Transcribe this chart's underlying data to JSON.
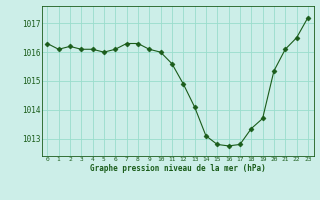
{
  "x": [
    0,
    1,
    2,
    3,
    4,
    5,
    6,
    7,
    8,
    9,
    10,
    11,
    12,
    13,
    14,
    15,
    16,
    17,
    18,
    19,
    20,
    21,
    22,
    23
  ],
  "y": [
    1016.3,
    1016.1,
    1016.2,
    1016.1,
    1016.1,
    1016.0,
    1016.1,
    1016.3,
    1016.3,
    1016.1,
    1016.0,
    1015.6,
    1014.9,
    1014.1,
    1013.1,
    1012.8,
    1012.75,
    1012.8,
    1013.35,
    1013.7,
    1015.35,
    1016.1,
    1016.5,
    1017.2
  ],
  "line_color": "#1a5c1a",
  "marker": "D",
  "marker_size": 2.5,
  "bg_color": "#cceee8",
  "grid_color": "#99ddcc",
  "title": "Graphe pression niveau de la mer (hPa)",
  "ylabel_ticks": [
    1013,
    1014,
    1015,
    1016,
    1017
  ],
  "ylim": [
    1012.4,
    1017.6
  ],
  "xlim": [
    -0.5,
    23.5
  ],
  "xtick_labels": [
    "0",
    "1",
    "2",
    "3",
    "4",
    "5",
    "6",
    "7",
    "8",
    "9",
    "10",
    "11",
    "12",
    "13",
    "14",
    "15",
    "16",
    "17",
    "18",
    "19",
    "20",
    "21",
    "22",
    "23"
  ]
}
